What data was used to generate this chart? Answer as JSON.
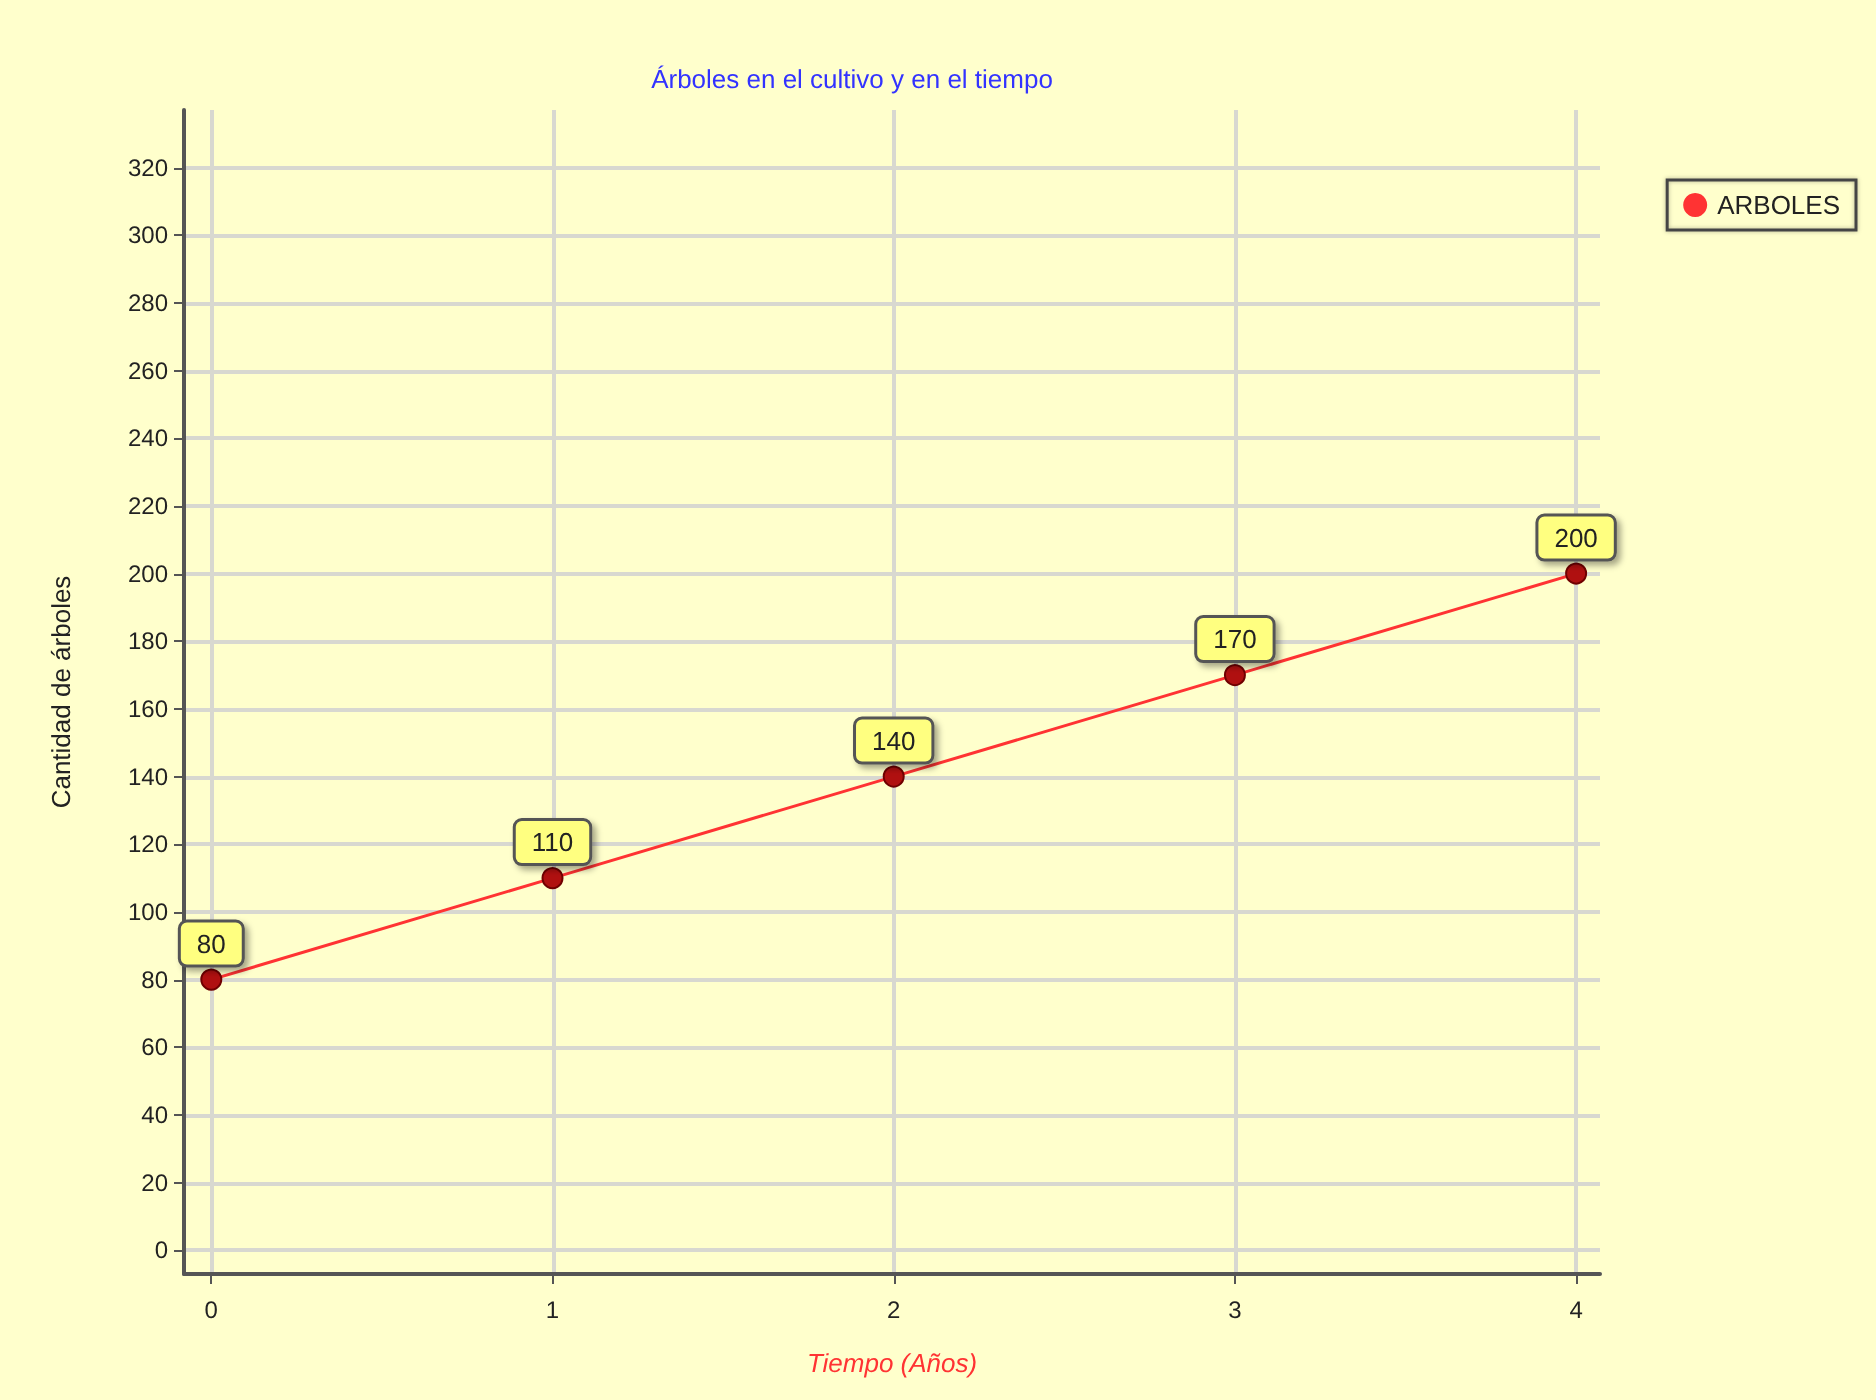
{
  "chart_data": {
    "type": "line",
    "title": "Árboles en el cultivo y en el tiempo",
    "xlabel": "Tiempo (Años)",
    "ylabel": "Cantidad de árboles",
    "x": [
      0,
      1,
      2,
      3,
      4
    ],
    "series": [
      {
        "name": "ARBOLES",
        "color": "#ff3333",
        "values": [
          80,
          110,
          140,
          170,
          200
        ]
      }
    ],
    "xlim": [
      -0.08,
      4.07
    ],
    "xticks": [
      0,
      1,
      2,
      3,
      4
    ],
    "ylim": [
      -7,
      337
    ],
    "yticks": [
      0,
      20,
      40,
      60,
      80,
      100,
      120,
      140,
      160,
      180,
      200,
      220,
      240,
      260,
      280,
      300,
      320
    ],
    "grid": true,
    "legend": "top right",
    "marker": "circle",
    "line_style": "solid",
    "data_labels": true
  }
}
